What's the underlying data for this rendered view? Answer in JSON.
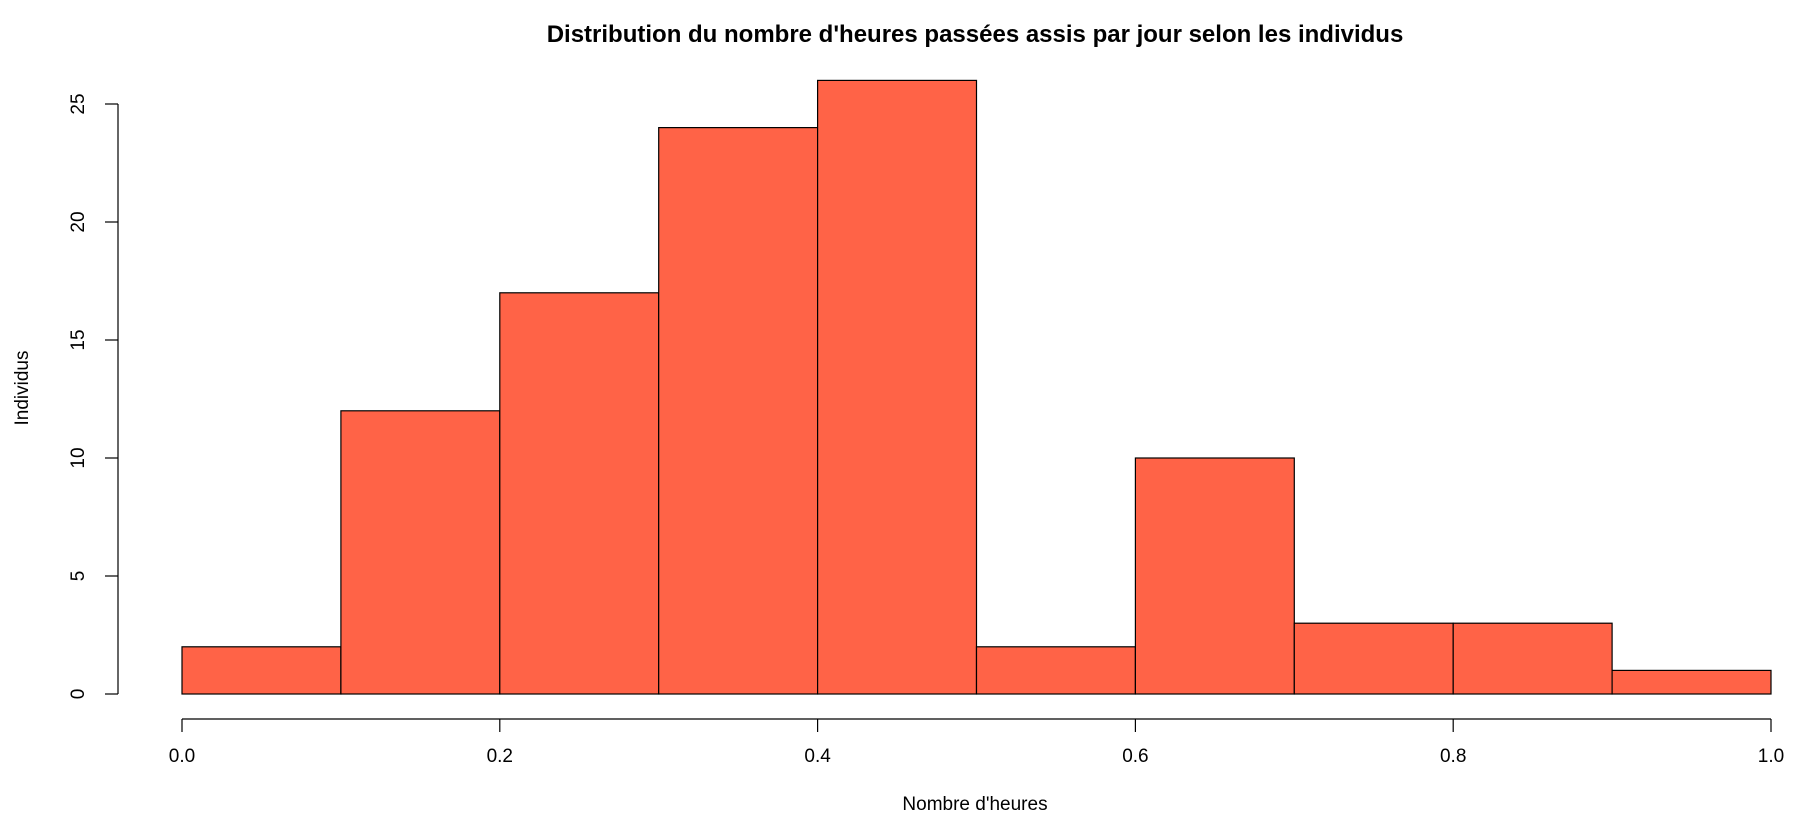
{
  "chart_data": {
    "type": "bar",
    "title": "Distribution du nombre d'heures passées assis par jour selon les individus",
    "xlabel": "Nombre d'heures",
    "ylabel": "Individus",
    "bins": [
      {
        "from": 0.0,
        "to": 0.1,
        "count": 2
      },
      {
        "from": 0.1,
        "to": 0.2,
        "count": 12
      },
      {
        "from": 0.2,
        "to": 0.3,
        "count": 17
      },
      {
        "from": 0.3,
        "to": 0.4,
        "count": 24
      },
      {
        "from": 0.4,
        "to": 0.5,
        "count": 26
      },
      {
        "from": 0.5,
        "to": 0.6,
        "count": 2
      },
      {
        "from": 0.6,
        "to": 0.7,
        "count": 10
      },
      {
        "from": 0.7,
        "to": 0.8,
        "count": 3
      },
      {
        "from": 0.8,
        "to": 0.9,
        "count": 3
      },
      {
        "from": 0.9,
        "to": 1.0,
        "count": 1
      }
    ],
    "xlim": [
      0,
      1
    ],
    "ylim": [
      0,
      25
    ],
    "x_ticks": [
      "0.0",
      "0.2",
      "0.4",
      "0.6",
      "0.8",
      "1.0"
    ],
    "y_ticks": [
      "0",
      "5",
      "10",
      "15",
      "20",
      "25"
    ],
    "bar_color": "#FF6347",
    "grid": false,
    "legend": "none"
  }
}
